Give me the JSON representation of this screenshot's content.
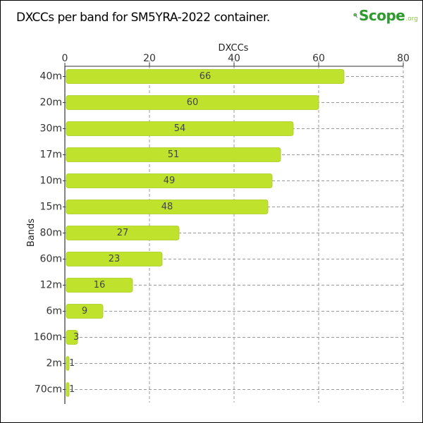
{
  "title": "DXCCs per band for SM5YRA-2022 container.",
  "logo": {
    "text": "Scope",
    "suffix": ".org"
  },
  "colors": {
    "bar": "#bfe22d",
    "bar_edge": "#a9cc1f",
    "grid": "#9a9a9a",
    "logo": "#2e9b2e"
  },
  "chart_data": {
    "type": "bar",
    "orientation": "horizontal",
    "title": "DXCCs per band for SM5YRA-2022 container.",
    "xlabel": "DXCCs",
    "ylabel": "Bands",
    "xlim": [
      0,
      80
    ],
    "xticks": [
      0,
      20,
      40,
      60,
      80
    ],
    "x_axis_position": "top",
    "grid": true,
    "categories": [
      "40m",
      "20m",
      "30m",
      "17m",
      "10m",
      "15m",
      "80m",
      "60m",
      "12m",
      "6m",
      "160m",
      "2m",
      "70cm"
    ],
    "values": [
      66,
      60,
      54,
      51,
      49,
      48,
      27,
      23,
      16,
      9,
      3,
      1,
      1
    ]
  }
}
